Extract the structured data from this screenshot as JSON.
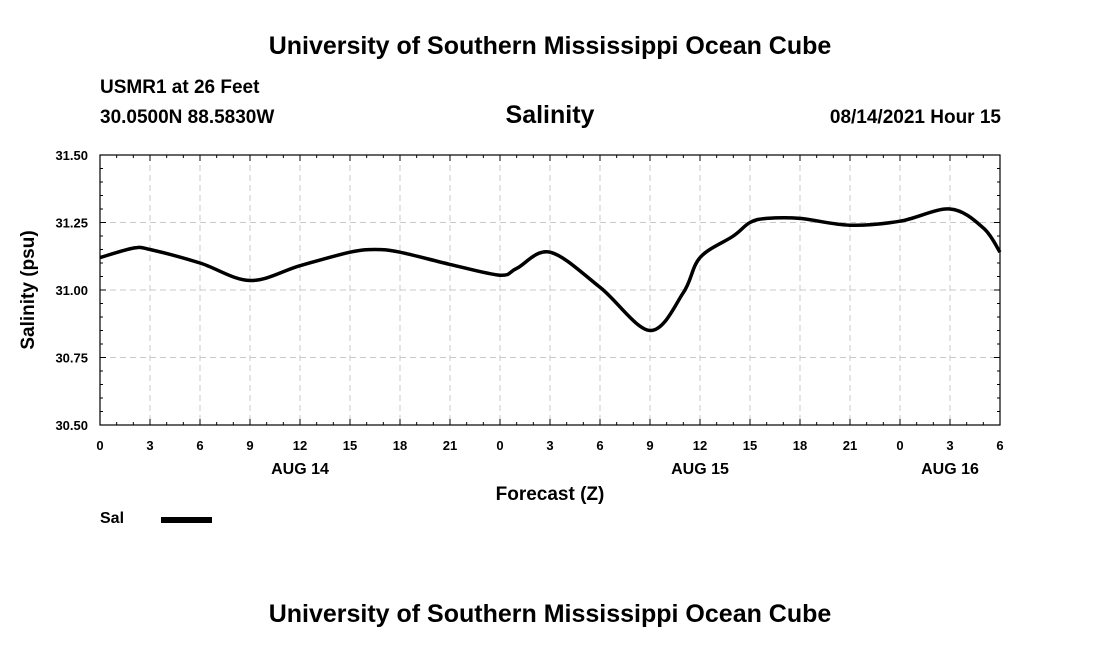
{
  "header": {
    "title": "University of Southern Mississippi Ocean Cube",
    "station": "USMR1 at 26 Feet",
    "coords": "30.0500N  88.5830W",
    "plot_title": "Salinity",
    "datetime": "08/14/2021 Hour 15"
  },
  "footer": {
    "title": "University of Southern Mississippi Ocean Cube"
  },
  "legend": {
    "label": "Sal",
    "color": "#000000"
  },
  "chart_data": {
    "type": "line",
    "title": "Salinity",
    "xlabel": "Forecast (Z)",
    "ylabel": "Salinity (psu)",
    "xlim": [
      0,
      54
    ],
    "ylim": [
      30.5,
      31.5
    ],
    "yticks": [
      30.5,
      30.75,
      31.0,
      31.25,
      31.5
    ],
    "ytick_labels": [
      "30.50",
      "30.75",
      "31.00",
      "31.25",
      "31.50"
    ],
    "xticks": [
      0,
      3,
      6,
      9,
      12,
      15,
      18,
      21,
      24,
      27,
      30,
      33,
      36,
      39,
      42,
      45,
      48,
      51,
      54
    ],
    "xtick_labels": [
      "0",
      "3",
      "6",
      "9",
      "12",
      "15",
      "18",
      "21",
      "0",
      "3",
      "6",
      "9",
      "12",
      "15",
      "18",
      "21",
      "0",
      "3",
      "6"
    ],
    "date_labels": [
      {
        "x": 12,
        "label": "AUG 14"
      },
      {
        "x": 36,
        "label": "AUG 15"
      },
      {
        "x": 51,
        "label": "AUG 16"
      }
    ],
    "grid": true,
    "series": [
      {
        "name": "Sal",
        "x": [
          0,
          2,
          3,
          6,
          9,
          12,
          15,
          16.5,
          18,
          21,
          24,
          25,
          27,
          30,
          33,
          35,
          36,
          38,
          39,
          40,
          42,
          45,
          48,
          51,
          53,
          54
        ],
        "values": [
          31.12,
          31.155,
          31.15,
          31.1,
          31.035,
          31.09,
          31.14,
          31.15,
          31.14,
          31.095,
          31.055,
          31.08,
          31.14,
          31.01,
          30.85,
          30.99,
          31.12,
          31.2,
          31.25,
          31.265,
          31.265,
          31.24,
          31.255,
          31.3,
          31.23,
          31.14
        ]
      }
    ]
  }
}
